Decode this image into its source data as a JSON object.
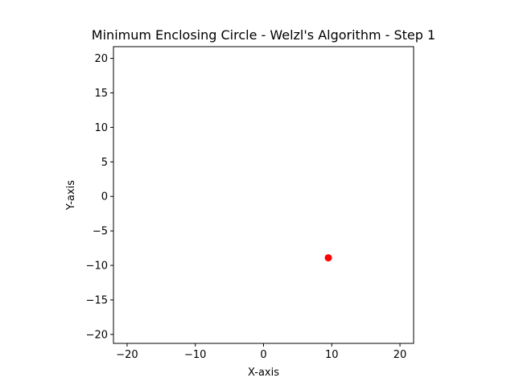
{
  "chart_data": {
    "type": "scatter",
    "title": "Minimum Enclosing Circle - Welzl's Algorithm - Step 1",
    "xlabel": "X-axis",
    "ylabel": "Y-axis",
    "xlim": [
      -22,
      22
    ],
    "ylim": [
      -21.3,
      21.7
    ],
    "xticks": [
      -20,
      -10,
      0,
      10,
      20
    ],
    "yticks": [
      -20,
      -15,
      -10,
      -5,
      0,
      5,
      10,
      15,
      20
    ],
    "tick_labels_x": [
      "−20",
      "−10",
      "0",
      "10",
      "20"
    ],
    "tick_labels_y": [
      "−20",
      "−15",
      "−10",
      "−5",
      "0",
      "5",
      "10",
      "15",
      "20"
    ],
    "grid": false,
    "points": [
      {
        "x": 9.5,
        "y": -8.9,
        "color": "#ff0000"
      }
    ]
  }
}
